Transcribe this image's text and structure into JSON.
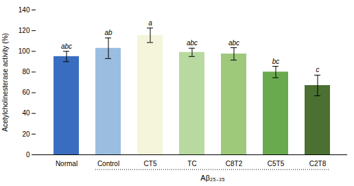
{
  "chart_data": {
    "type": "bar",
    "categories": [
      "Normal",
      "Control",
      "CT5",
      "TC",
      "C8T2",
      "C5T5",
      "C2T8"
    ],
    "values": [
      95.0,
      103.0,
      115.5,
      99.0,
      97.5,
      80.0,
      67.0
    ],
    "errors": [
      5.0,
      10.0,
      7.0,
      4.0,
      6.0,
      5.5,
      10.0
    ],
    "colors": [
      "#3a6dbf",
      "#9bbde0",
      "#f5f5dc",
      "#b8d9a0",
      "#9ec87a",
      "#6aaa4e",
      "#4b7031"
    ],
    "annotations": [
      "abc",
      "ab",
      "a",
      "abc",
      "abc",
      "bc",
      "c"
    ],
    "ylabel": "Acetylcholinesterase activity (%)",
    "xlabel": "Aβ₂₅₋₃₅",
    "ylim": [
      0,
      140
    ],
    "yticks": [
      0,
      20,
      40,
      60,
      80,
      100,
      120,
      140
    ],
    "grid": false
  }
}
